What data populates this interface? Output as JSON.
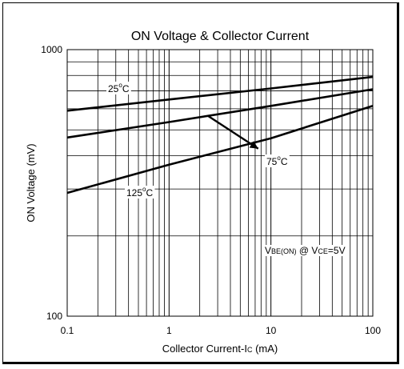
{
  "chart_data": {
    "type": "line",
    "title": "ON Voltage & Collector Current",
    "xlabel": "Collector Current-IC (mA)",
    "xlabel_parts": {
      "pre": "Collector Current-I",
      "sub": "C",
      "post": " (mA)"
    },
    "ylabel": "ON Voltage (mV)",
    "x_scale": "log",
    "y_scale": "log",
    "xlim": [
      0.1,
      100
    ],
    "ylim": [
      100,
      1000
    ],
    "x_ticks": [
      {
        "value": 0.1,
        "label": "0.1"
      },
      {
        "value": 1,
        "label": "1"
      },
      {
        "value": 10,
        "label": "10"
      },
      {
        "value": 100,
        "label": "100"
      }
    ],
    "y_ticks": [
      {
        "value": 100,
        "label": "100"
      },
      {
        "value": 1000,
        "label": "1000"
      }
    ],
    "grid": true,
    "series": [
      {
        "name": "25°C",
        "x": [
          0.1,
          1,
          10,
          100
        ],
        "y": [
          590,
          650,
          715,
          790
        ]
      },
      {
        "name": "75°C",
        "x": [
          0.1,
          1,
          10,
          100
        ],
        "y": [
          468,
          535,
          615,
          710
        ]
      },
      {
        "name": "125°C",
        "x": [
          0.1,
          1,
          10,
          100
        ],
        "y": [
          290,
          370,
          465,
          615
        ]
      }
    ],
    "annotations": {
      "label_25": {
        "base": "25",
        "sup": "o",
        "unit": "C"
      },
      "label_75": {
        "base": "75",
        "sup": "o",
        "unit": "C"
      },
      "label_125": {
        "base": "125",
        "sup": "o",
        "unit": "C"
      },
      "condition": {
        "v1": "V",
        "s1": "BE(ON)",
        "mid": " @ V",
        "s2": "CE",
        "end": "=5V"
      }
    },
    "arrow": {
      "from": {
        "x": 2.4,
        "y": 565
      },
      "to": {
        "x": 7.5,
        "y": 425
      }
    },
    "line_color": "#000000",
    "grid_color": "#000000"
  }
}
